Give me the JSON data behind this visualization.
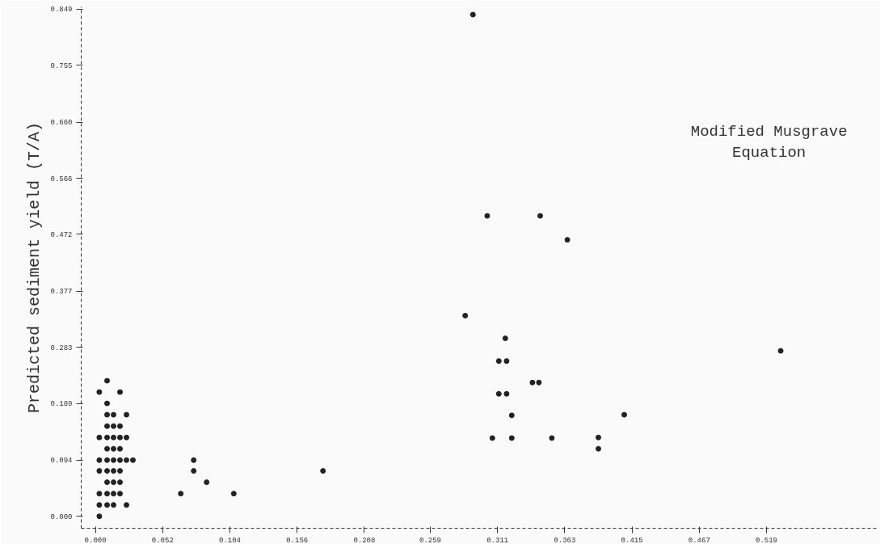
{
  "chart_data": {
    "type": "scatter",
    "title": "Modified Musgrave Equation",
    "ylabel": "Predicted sediment yield (T/A)",
    "x": [
      0.009,
      0.003,
      0.019,
      0.009,
      0.009,
      0.014,
      0.024,
      0.009,
      0.014,
      0.019,
      0.003,
      0.009,
      0.014,
      0.019,
      0.024,
      0.009,
      0.014,
      0.019,
      0.003,
      0.009,
      0.014,
      0.019,
      0.024,
      0.029,
      0.003,
      0.009,
      0.014,
      0.019,
      0.009,
      0.014,
      0.019,
      0.003,
      0.009,
      0.014,
      0.019,
      0.003,
      0.009,
      0.014,
      0.024,
      0.003,
      0.066,
      0.076,
      0.076,
      0.086,
      0.107,
      0.176,
      0.292,
      0.303,
      0.344,
      0.365,
      0.286,
      0.317,
      0.312,
      0.318,
      0.338,
      0.343,
      0.312,
      0.318,
      0.322,
      0.409,
      0.307,
      0.322,
      0.353,
      0.389,
      0.389,
      0.53
    ],
    "values": [
      0.227,
      0.208,
      0.208,
      0.189,
      0.17,
      0.17,
      0.17,
      0.151,
      0.151,
      0.151,
      0.132,
      0.132,
      0.132,
      0.132,
      0.132,
      0.113,
      0.113,
      0.113,
      0.094,
      0.094,
      0.094,
      0.094,
      0.094,
      0.094,
      0.076,
      0.076,
      0.076,
      0.076,
      0.057,
      0.057,
      0.057,
      0.038,
      0.038,
      0.038,
      0.038,
      0.019,
      0.019,
      0.019,
      0.019,
      0.0,
      0.038,
      0.094,
      0.076,
      0.057,
      0.038,
      0.076,
      0.84,
      0.503,
      0.503,
      0.463,
      0.336,
      0.298,
      0.26,
      0.26,
      0.224,
      0.224,
      0.205,
      0.205,
      0.169,
      0.17,
      0.131,
      0.131,
      0.131,
      0.132,
      0.113,
      0.277
    ],
    "color": "#222222",
    "marker": "circle",
    "grid": false,
    "xlim": [
      -0.011,
      0.604
    ],
    "ylim": [
      -0.02,
      0.853
    ],
    "xticks": [
      {
        "value": 0,
        "label": "0.000"
      },
      0.052,
      0.104,
      0.156,
      0.208,
      0.259,
      0.311,
      0.363,
      0.415,
      0.467,
      0.519
    ],
    "yticks": [
      {
        "value": 0,
        "label": "0.000"
      },
      0.094,
      0.189,
      0.283,
      0.377,
      0.472,
      0.566,
      {
        "value": 0.66,
        "label": "0.660"
      },
      0.755,
      0.849
    ]
  }
}
